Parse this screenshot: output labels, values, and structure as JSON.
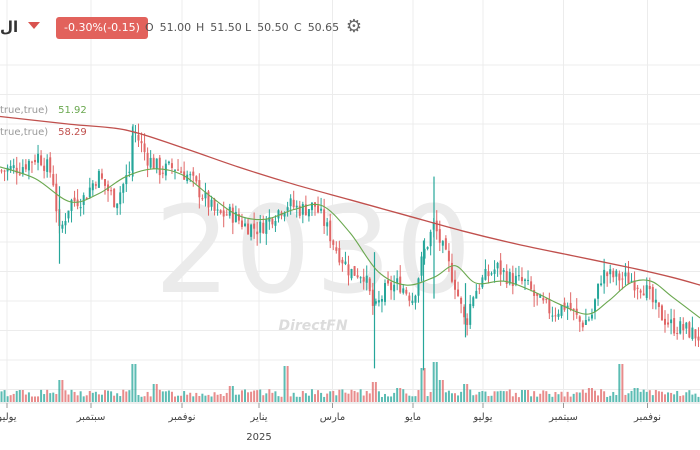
{
  "header": {
    "symbol": "ال",
    "change": "-0.30%(-0.15)",
    "ohlc": [
      {
        "key": "O",
        "value": "51.00"
      },
      {
        "key": "H",
        "value": "51.50"
      },
      {
        "key": "L",
        "value": "50.50"
      },
      {
        "key": "C",
        "value": "50.65"
      }
    ],
    "settings_icon": "gear-icon",
    "menu_icon": "chevron-down-icon"
  },
  "legend": [
    {
      "label": "true,true)",
      "value": "51.92",
      "color": "#6aa84f"
    },
    {
      "label": "true,true)",
      "value": "58.29",
      "color": "#c0504d"
    }
  ],
  "watermark": {
    "ticker": "2030",
    "brand": "DirectFN"
  },
  "colors": {
    "up": "#26a69a",
    "down": "#e06666",
    "ma_short": "#6aa84f",
    "ma_long": "#c0504d",
    "grid": "#ececec"
  },
  "chart_data": {
    "type": "candlestick",
    "y_range": [
      46,
      62
    ],
    "x_axis": {
      "range": [
        0,
        100
      ],
      "ticks": [
        {
          "x": 1,
          "label": "يوليو"
        },
        {
          "x": 13,
          "label": "سبتمبر"
        },
        {
          "x": 26,
          "label": "نوفمبر"
        },
        {
          "x": 37,
          "label": "يناير",
          "sub": "2025"
        },
        {
          "x": 47.5,
          "label": "مارس"
        },
        {
          "x": 59,
          "label": "مايو"
        },
        {
          "x": 69,
          "label": "يوليو"
        },
        {
          "x": 80.5,
          "label": "سبتمبر"
        },
        {
          "x": 92.5,
          "label": "نوفمبر"
        }
      ]
    },
    "price_series": [
      {
        "x": 0,
        "y": 56.8
      },
      {
        "x": 3,
        "y": 57.0
      },
      {
        "x": 5.5,
        "y": 57.6
      },
      {
        "x": 7.5,
        "y": 56.6
      },
      {
        "x": 8.5,
        "y": 53.5
      },
      {
        "x": 10,
        "y": 55.2
      },
      {
        "x": 12,
        "y": 55.4
      },
      {
        "x": 14,
        "y": 56.6
      },
      {
        "x": 16.5,
        "y": 55.2
      },
      {
        "x": 18.5,
        "y": 56.8
      },
      {
        "x": 19,
        "y": 59.0
      },
      {
        "x": 21,
        "y": 57.5
      },
      {
        "x": 23,
        "y": 56.8
      },
      {
        "x": 25,
        "y": 57.0
      },
      {
        "x": 27,
        "y": 56.5
      },
      {
        "x": 29,
        "y": 55.5
      },
      {
        "x": 31,
        "y": 54.5
      },
      {
        "x": 33,
        "y": 54.6
      },
      {
        "x": 35,
        "y": 54.0
      },
      {
        "x": 37,
        "y": 53.8
      },
      {
        "x": 39,
        "y": 54.5
      },
      {
        "x": 41,
        "y": 55.1
      },
      {
        "x": 43,
        "y": 54.8
      },
      {
        "x": 45,
        "y": 55.0
      },
      {
        "x": 46.5,
        "y": 54.0
      },
      {
        "x": 48,
        "y": 52.8
      },
      {
        "x": 50,
        "y": 51.6
      },
      {
        "x": 52,
        "y": 51.5
      },
      {
        "x": 53.5,
        "y": 49.5
      },
      {
        "x": 55,
        "y": 50.6
      },
      {
        "x": 57,
        "y": 51.0
      },
      {
        "x": 59,
        "y": 50.2
      },
      {
        "x": 60.5,
        "y": 52.5
      },
      {
        "x": 62,
        "y": 54.0
      },
      {
        "x": 63.5,
        "y": 52.5
      },
      {
        "x": 65,
        "y": 51.0
      },
      {
        "x": 66.5,
        "y": 48.8
      },
      {
        "x": 67.5,
        "y": 50.4
      },
      {
        "x": 69,
        "y": 51.2
      },
      {
        "x": 71,
        "y": 51.8
      },
      {
        "x": 73,
        "y": 51.2
      },
      {
        "x": 75,
        "y": 51.0
      },
      {
        "x": 77,
        "y": 50.0
      },
      {
        "x": 79,
        "y": 49.5
      },
      {
        "x": 81,
        "y": 49.9
      },
      {
        "x": 83,
        "y": 48.9
      },
      {
        "x": 84.5,
        "y": 49.3
      },
      {
        "x": 86,
        "y": 51.5
      },
      {
        "x": 88,
        "y": 51.3
      },
      {
        "x": 90,
        "y": 51.2
      },
      {
        "x": 92,
        "y": 50.8
      },
      {
        "x": 94,
        "y": 49.5
      },
      {
        "x": 96,
        "y": 48.8
      },
      {
        "x": 98,
        "y": 48.6
      },
      {
        "x": 100,
        "y": 48.2
      }
    ],
    "ma_short": [
      {
        "x": 0,
        "y": 57.0
      },
      {
        "x": 5,
        "y": 56.4
      },
      {
        "x": 10,
        "y": 55.2
      },
      {
        "x": 14,
        "y": 55.6
      },
      {
        "x": 18,
        "y": 56.5
      },
      {
        "x": 22,
        "y": 56.9
      },
      {
        "x": 26,
        "y": 56.6
      },
      {
        "x": 30,
        "y": 55.5
      },
      {
        "x": 34,
        "y": 54.5
      },
      {
        "x": 38,
        "y": 54.3
      },
      {
        "x": 42,
        "y": 54.8
      },
      {
        "x": 46,
        "y": 55.0
      },
      {
        "x": 50,
        "y": 53.6
      },
      {
        "x": 54,
        "y": 51.6
      },
      {
        "x": 58,
        "y": 50.9
      },
      {
        "x": 62,
        "y": 51.3
      },
      {
        "x": 65,
        "y": 51.9
      },
      {
        "x": 68,
        "y": 51.0
      },
      {
        "x": 72,
        "y": 51.1
      },
      {
        "x": 76,
        "y": 50.6
      },
      {
        "x": 80,
        "y": 49.9
      },
      {
        "x": 84,
        "y": 49.4
      },
      {
        "x": 87,
        "y": 50.1
      },
      {
        "x": 90,
        "y": 51.0
      },
      {
        "x": 93,
        "y": 51.1
      },
      {
        "x": 96,
        "y": 50.3
      },
      {
        "x": 100,
        "y": 49.2
      }
    ],
    "ma_long": [
      {
        "x": 0,
        "y": 59.6
      },
      {
        "x": 10,
        "y": 59.2
      },
      {
        "x": 18,
        "y": 58.9
      },
      {
        "x": 26,
        "y": 58.0
      },
      {
        "x": 34,
        "y": 57.0
      },
      {
        "x": 42,
        "y": 56.1
      },
      {
        "x": 50,
        "y": 55.3
      },
      {
        "x": 58,
        "y": 54.5
      },
      {
        "x": 66,
        "y": 53.7
      },
      {
        "x": 74,
        "y": 53.0
      },
      {
        "x": 82,
        "y": 52.4
      },
      {
        "x": 90,
        "y": 51.8
      },
      {
        "x": 96,
        "y": 51.3
      },
      {
        "x": 100,
        "y": 50.9
      }
    ],
    "volume_spikes": [
      {
        "x": 3,
        "v": 0.3
      },
      {
        "x": 8.5,
        "v": 0.55
      },
      {
        "x": 19,
        "v": 0.95
      },
      {
        "x": 22,
        "v": 0.45
      },
      {
        "x": 33,
        "v": 0.4
      },
      {
        "x": 41,
        "v": 0.9
      },
      {
        "x": 53.5,
        "v": 0.5
      },
      {
        "x": 57,
        "v": 0.35
      },
      {
        "x": 60.5,
        "v": 0.85
      },
      {
        "x": 62,
        "v": 1.0
      },
      {
        "x": 63.2,
        "v": 0.55
      },
      {
        "x": 66.5,
        "v": 0.45
      },
      {
        "x": 75,
        "v": 0.3
      },
      {
        "x": 84.5,
        "v": 0.35
      },
      {
        "x": 88.5,
        "v": 0.95
      },
      {
        "x": 91,
        "v": 0.35
      }
    ]
  }
}
